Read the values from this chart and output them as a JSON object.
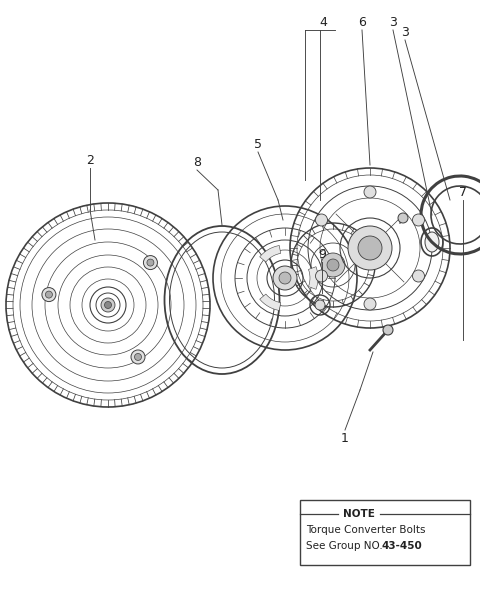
{
  "bg_color": "#ffffff",
  "line_color": "#404040",
  "label_color": "#222222",
  "fig_width": 4.8,
  "fig_height": 5.94,
  "dpi": 100,
  "note": {
    "line1": "Torque Converter Bolts",
    "line2": "See Group NO. 43-450",
    "bold_part": "43-450"
  }
}
